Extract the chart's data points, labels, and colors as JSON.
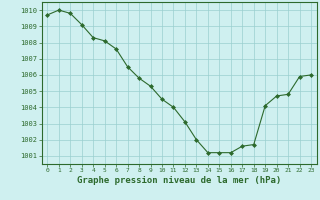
{
  "x": [
    0,
    1,
    2,
    3,
    4,
    5,
    6,
    7,
    8,
    9,
    10,
    11,
    12,
    13,
    14,
    15,
    16,
    17,
    18,
    19,
    20,
    21,
    22,
    23
  ],
  "y": [
    1009.7,
    1010.0,
    1009.8,
    1009.1,
    1008.3,
    1008.1,
    1007.6,
    1006.5,
    1005.8,
    1005.3,
    1004.5,
    1004.0,
    1003.1,
    1002.0,
    1001.2,
    1001.2,
    1001.2,
    1001.6,
    1001.7,
    1004.1,
    1004.7,
    1004.8,
    1005.9,
    1006.0
  ],
  "line_color": "#2d6a2d",
  "marker": "D",
  "marker_size": 2.0,
  "bg_color": "#cff0f0",
  "grid_color": "#9acfcf",
  "ylabel_values": [
    1001,
    1002,
    1003,
    1004,
    1005,
    1006,
    1007,
    1008,
    1009,
    1010
  ],
  "xlabel": "Graphe pression niveau de la mer (hPa)",
  "xlim": [
    -0.5,
    23.5
  ],
  "ylim": [
    1000.5,
    1010.5
  ]
}
